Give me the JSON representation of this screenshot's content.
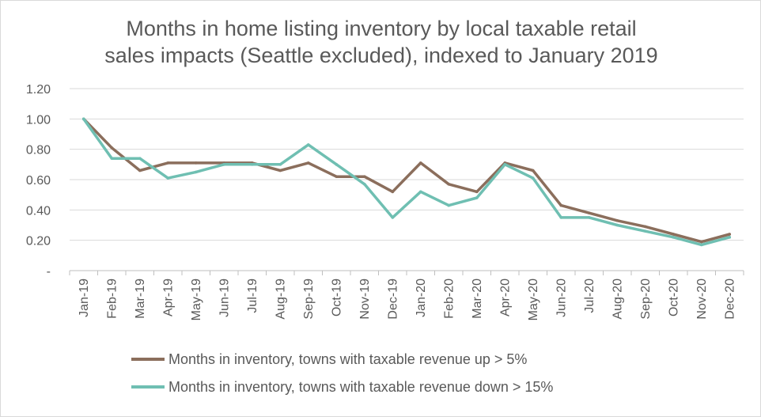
{
  "chart_data": {
    "type": "line",
    "title_lines": [
      "Months in home listing inventory by local taxable retail",
      "sales impacts (Seattle excluded), indexed to January 2019"
    ],
    "categories": [
      "Jan-19",
      "Feb-19",
      "Mar-19",
      "Apr-19",
      "May-19",
      "Jun-19",
      "Jul-19",
      "Aug-19",
      "Sep-19",
      "Oct-19",
      "Nov-19",
      "Dec-19",
      "Jan-20",
      "Feb-20",
      "Mar-20",
      "Apr-20",
      "May-20",
      "Jun-20",
      "Jul-20",
      "Aug-20",
      "Sep-20",
      "Oct-20",
      "Nov-20",
      "Dec-20"
    ],
    "y_ticks": [
      "-",
      "0.20",
      "0.40",
      "0.60",
      "0.80",
      "1.00",
      "1.20"
    ],
    "ylim": [
      0,
      1.2
    ],
    "grid": true,
    "legend_position": "bottom",
    "series": [
      {
        "name": "Months in inventory, towns with taxable revenue up > 5%",
        "color": "#8b6e5c",
        "values": [
          1.0,
          0.81,
          0.66,
          0.71,
          0.71,
          0.71,
          0.71,
          0.66,
          0.71,
          0.62,
          0.62,
          0.52,
          0.71,
          0.57,
          0.52,
          0.71,
          0.66,
          0.43,
          0.38,
          0.33,
          0.29,
          0.24,
          0.19,
          0.24
        ]
      },
      {
        "name": "Months in inventory, towns with taxable revenue down > 15%",
        "color": "#6fbfb2",
        "values": [
          1.0,
          0.74,
          0.74,
          0.61,
          0.65,
          0.7,
          0.7,
          0.7,
          0.83,
          0.7,
          0.57,
          0.35,
          0.52,
          0.43,
          0.48,
          0.7,
          0.61,
          0.35,
          0.35,
          0.3,
          0.26,
          0.22,
          0.17,
          0.22
        ]
      }
    ]
  }
}
